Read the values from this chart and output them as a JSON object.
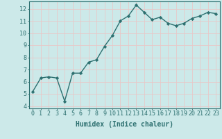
{
  "x": [
    0,
    1,
    2,
    3,
    4,
    5,
    6,
    7,
    8,
    9,
    10,
    11,
    12,
    13,
    14,
    15,
    16,
    17,
    18,
    19,
    20,
    21,
    22,
    23
  ],
  "y": [
    5.2,
    6.3,
    6.4,
    6.3,
    4.4,
    6.7,
    6.7,
    7.6,
    7.8,
    8.9,
    9.8,
    11.0,
    11.4,
    12.3,
    11.7,
    11.1,
    11.3,
    10.8,
    10.6,
    10.8,
    11.2,
    11.4,
    11.7,
    11.6
  ],
  "line_color": "#2d7070",
  "marker": "D",
  "marker_size": 2.2,
  "bg_color": "#cce9e9",
  "grid_color": "#e8c8c8",
  "xlabel": "Humidex (Indice chaleur)",
  "xlim": [
    -0.5,
    23.5
  ],
  "ylim": [
    3.8,
    12.6
  ],
  "yticks": [
    4,
    5,
    6,
    7,
    8,
    9,
    10,
    11,
    12
  ],
  "xticks": [
    0,
    1,
    2,
    3,
    4,
    5,
    6,
    7,
    8,
    9,
    10,
    11,
    12,
    13,
    14,
    15,
    16,
    17,
    18,
    19,
    20,
    21,
    22,
    23
  ],
  "xtick_labels": [
    "0",
    "1",
    "2",
    "3",
    "4",
    "5",
    "6",
    "7",
    "8",
    "9",
    "10",
    "11",
    "12",
    "13",
    "14",
    "15",
    "16",
    "17",
    "18",
    "19",
    "20",
    "21",
    "22",
    "23"
  ],
  "tick_color": "#2d7070",
  "font_color": "#2d7070",
  "xlabel_fontsize": 7,
  "tick_fontsize": 6,
  "line_width": 1.0,
  "border_color": "#2d7070"
}
